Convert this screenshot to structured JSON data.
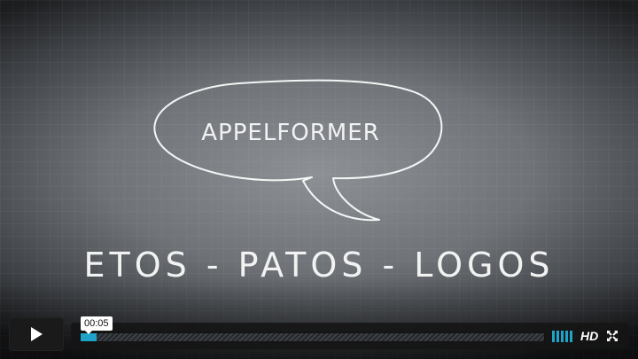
{
  "video": {
    "bubble_text": "APPELFORMER",
    "caption_text": "ETOS - PATOS - LOGOS"
  },
  "controls": {
    "current_time": "00:05",
    "hd_label": "HD",
    "progress_fraction": 0.035,
    "volume_level_bars": 5,
    "play_icon": "play-icon",
    "fullscreen_icon": "fullscreen-icon",
    "accent_color": "#20a3c8"
  }
}
